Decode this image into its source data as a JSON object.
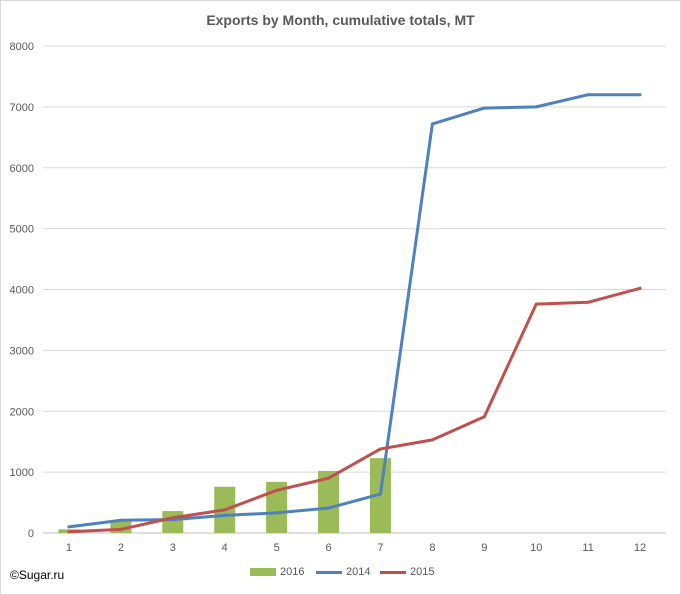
{
  "chart_data": {
    "type": "bar",
    "title": "Exports by Month, cumulative totals, MT",
    "categories": [
      "1",
      "2",
      "3",
      "4",
      "5",
      "6",
      "7",
      "8",
      "9",
      "10",
      "11",
      "12"
    ],
    "ylim": [
      0,
      8000
    ],
    "yticks": [
      0,
      1000,
      2000,
      3000,
      4000,
      5000,
      6000,
      7000,
      8000
    ],
    "grid": "horizontal",
    "legend_position": "bottom",
    "series": [
      {
        "name": "2016",
        "type": "bar",
        "color": "#9bbb59",
        "values": [
          60,
          200,
          360,
          760,
          840,
          1020,
          1230,
          null,
          null,
          null,
          null,
          null
        ]
      },
      {
        "name": "2014",
        "type": "line",
        "color": "#4f81bd",
        "values": [
          100,
          210,
          220,
          290,
          330,
          410,
          640,
          6720,
          6980,
          7000,
          7200,
          7200
        ]
      },
      {
        "name": "2015",
        "type": "line",
        "color": "#c0504d",
        "values": [
          20,
          60,
          250,
          380,
          700,
          900,
          1380,
          1530,
          1910,
          3760,
          3790,
          4020
        ]
      }
    ]
  },
  "footer": {
    "copyright": "©Sugar.ru"
  }
}
